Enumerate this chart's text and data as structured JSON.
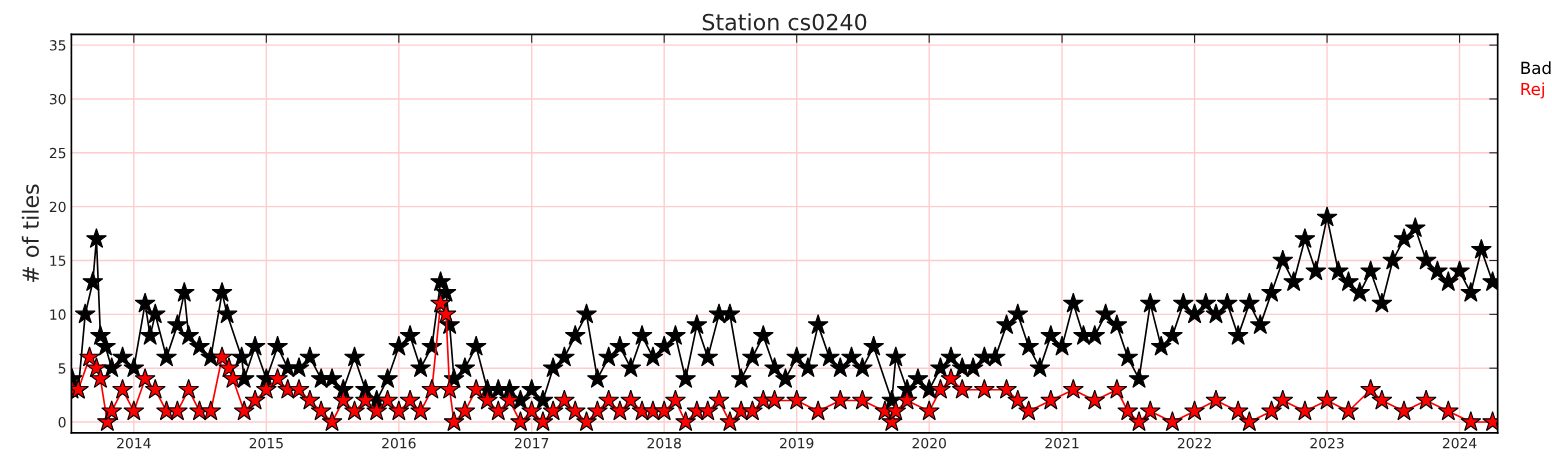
{
  "chart_data": {
    "type": "line",
    "title": "Station cs0240",
    "ylabel": "# of tiles",
    "xlim": [
      "2013-07-13",
      "2024-04-15"
    ],
    "xticks": [
      {
        "value": "2014-01-01",
        "label": "2014"
      },
      {
        "value": "2015-01-01",
        "label": "2015"
      },
      {
        "value": "2016-01-01",
        "label": "2016"
      },
      {
        "value": "2017-01-01",
        "label": "2017"
      },
      {
        "value": "2018-01-01",
        "label": "2018"
      },
      {
        "value": "2019-01-01",
        "label": "2019"
      },
      {
        "value": "2020-01-01",
        "label": "2020"
      },
      {
        "value": "2021-01-01",
        "label": "2021"
      },
      {
        "value": "2022-01-01",
        "label": "2022"
      },
      {
        "value": "2023-01-01",
        "label": "2023"
      },
      {
        "value": "2024-01-01",
        "label": "2024"
      }
    ],
    "ylim": [
      -1,
      36
    ],
    "yticks": [
      0,
      5,
      10,
      15,
      20,
      25,
      30,
      35
    ],
    "grid": true,
    "legend": "right",
    "marker": "star",
    "line_style": "solid",
    "series": [
      {
        "name": "Bad",
        "color": "#000000",
        "x": [
          "2013-07-15",
          "2013-08-01",
          "2013-08-20",
          "2013-09-01",
          "2013-09-10",
          "2013-09-20",
          "2013-10-01",
          "2013-10-15",
          "2013-11-01",
          "2013-12-01",
          "2014-01-01",
          "2014-02-01",
          "2014-02-15",
          "2014-03-01",
          "2014-04-01",
          "2014-05-01",
          "2014-05-20",
          "2014-06-01",
          "2014-07-01",
          "2014-08-01",
          "2014-09-01",
          "2014-09-15",
          "2014-10-15",
          "2014-10-25",
          "2014-11-01",
          "2014-12-01",
          "2015-01-01",
          "2015-02-01",
          "2015-03-01",
          "2015-04-01",
          "2015-05-01",
          "2015-06-01",
          "2015-07-01",
          "2015-08-01",
          "2015-09-01",
          "2015-10-01",
          "2015-11-01",
          "2015-12-01",
          "2016-01-01",
          "2016-02-01",
          "2016-03-01",
          "2016-04-01",
          "2016-04-25",
          "2016-05-10",
          "2016-05-20",
          "2016-06-01",
          "2016-07-01",
          "2016-08-01",
          "2016-09-01",
          "2016-10-01",
          "2016-11-01",
          "2016-12-01",
          "2017-01-01",
          "2017-02-01",
          "2017-03-01",
          "2017-04-01",
          "2017-05-01",
          "2017-06-01",
          "2017-07-01",
          "2017-08-01",
          "2017-09-01",
          "2017-10-01",
          "2017-11-01",
          "2017-12-01",
          "2018-01-01",
          "2018-02-01",
          "2018-03-01",
          "2018-04-01",
          "2018-05-01",
          "2018-06-01",
          "2018-07-01",
          "2018-08-01",
          "2018-09-01",
          "2018-10-01",
          "2018-11-01",
          "2018-12-01",
          "2019-01-01",
          "2019-02-01",
          "2019-03-01",
          "2019-04-01",
          "2019-05-01",
          "2019-06-01",
          "2019-07-01",
          "2019-08-01",
          "2019-09-01",
          "2019-09-20",
          "2019-10-01",
          "2019-11-01",
          "2019-12-01",
          "2020-01-01",
          "2020-02-01",
          "2020-03-01",
          "2020-04-01",
          "2020-05-01",
          "2020-06-01",
          "2020-07-01",
          "2020-08-01",
          "2020-09-01",
          "2020-10-01",
          "2020-11-01",
          "2020-12-01",
          "2021-01-01",
          "2021-02-01",
          "2021-03-01",
          "2021-04-01",
          "2021-05-01",
          "2021-06-01",
          "2021-07-01",
          "2021-08-01",
          "2021-09-01",
          "2021-10-01",
          "2021-11-01",
          "2021-12-01",
          "2022-01-01",
          "2022-02-01",
          "2022-03-01",
          "2022-04-01",
          "2022-05-01",
          "2022-06-01",
          "2022-07-01",
          "2022-08-01",
          "2022-09-01",
          "2022-10-01",
          "2022-11-01",
          "2022-12-01",
          "2023-01-01",
          "2023-02-01",
          "2023-03-01",
          "2023-04-01",
          "2023-05-01",
          "2023-06-01",
          "2023-07-01",
          "2023-08-01",
          "2023-09-01",
          "2023-10-01",
          "2023-11-01",
          "2023-12-01",
          "2024-01-01",
          "2024-02-01",
          "2024-03-01",
          "2024-04-01"
        ],
        "values": [
          4,
          3,
          10,
          null,
          13,
          17,
          8,
          7,
          5,
          6,
          5,
          11,
          8,
          10,
          6,
          9,
          12,
          8,
          7,
          6,
          12,
          10,
          null,
          6,
          4,
          7,
          4,
          7,
          5,
          5,
          6,
          4,
          4,
          3,
          6,
          3,
          2,
          4,
          7,
          8,
          5,
          7,
          13,
          12,
          9,
          4,
          5,
          7,
          3,
          3,
          3,
          2,
          3,
          2,
          5,
          6,
          8,
          10,
          4,
          6,
          7,
          5,
          8,
          6,
          7,
          8,
          4,
          9,
          6,
          10,
          10,
          4,
          6,
          8,
          5,
          4,
          6,
          5,
          9,
          6,
          5,
          6,
          5,
          7,
          null,
          2,
          6,
          3,
          4,
          3,
          5,
          6,
          5,
          5,
          6,
          6,
          9,
          10,
          7,
          5,
          8,
          7,
          11,
          8,
          8,
          10,
          9,
          6,
          4,
          11,
          7,
          8,
          11,
          10,
          11,
          10,
          11,
          8,
          11,
          9,
          12,
          15,
          13,
          17,
          14,
          19,
          14,
          13,
          12,
          14,
          11,
          15,
          17,
          18,
          15,
          14,
          13,
          14,
          12,
          16,
          13
        ]
      },
      {
        "name": "Rej",
        "color": "#ff0000",
        "x": [
          "2013-07-15",
          "2013-08-01",
          "2013-09-01",
          "2013-09-20",
          "2013-10-01",
          "2013-10-20",
          "2013-11-01",
          "2013-12-01",
          "2014-01-01",
          "2014-02-01",
          "2014-03-01",
          "2014-04-01",
          "2014-05-01",
          "2014-06-01",
          "2014-07-01",
          "2014-08-01",
          "2014-09-01",
          "2014-09-20",
          "2014-10-01",
          "2014-11-01",
          "2014-12-01",
          "2015-01-01",
          "2015-02-01",
          "2015-03-01",
          "2015-04-01",
          "2015-05-01",
          "2015-06-01",
          "2015-07-01",
          "2015-08-01",
          "2015-09-01",
          "2015-10-01",
          "2015-11-01",
          "2015-12-01",
          "2016-01-01",
          "2016-02-01",
          "2016-03-01",
          "2016-04-01",
          "2016-04-25",
          "2016-05-10",
          "2016-05-20",
          "2016-06-01",
          "2016-07-01",
          "2016-08-01",
          "2016-09-01",
          "2016-10-01",
          "2016-11-01",
          "2016-12-01",
          "2017-01-01",
          "2017-02-01",
          "2017-03-01",
          "2017-04-01",
          "2017-05-01",
          "2017-06-01",
          "2017-07-01",
          "2017-08-01",
          "2017-09-01",
          "2017-10-01",
          "2017-11-01",
          "2017-12-01",
          "2018-01-01",
          "2018-02-01",
          "2018-03-01",
          "2018-04-01",
          "2018-05-01",
          "2018-06-01",
          "2018-07-01",
          "2018-08-01",
          "2018-09-01",
          "2018-10-01",
          "2018-11-01",
          "2019-01-01",
          "2019-03-01",
          "2019-05-01",
          "2019-07-01",
          "2019-09-01",
          "2019-09-20",
          "2019-10-01",
          "2019-11-01",
          "2020-01-01",
          "2020-02-01",
          "2020-03-01",
          "2020-04-01",
          "2020-06-01",
          "2020-08-01",
          "2020-09-01",
          "2020-10-01",
          "2020-12-01",
          "2021-02-01",
          "2021-04-01",
          "2021-06-01",
          "2021-07-01",
          "2021-08-01",
          "2021-09-01",
          "2021-11-01",
          "2022-01-01",
          "2022-03-01",
          "2022-05-01",
          "2022-06-01",
          "2022-08-01",
          "2022-09-01",
          "2022-11-01",
          "2023-01-01",
          "2023-03-01",
          "2023-05-01",
          "2023-06-01",
          "2023-08-01",
          "2023-10-01",
          "2023-12-01",
          "2024-02-01",
          "2024-04-01"
        ],
        "values": [
          3,
          3,
          6,
          5,
          4,
          0,
          1,
          3,
          1,
          4,
          3,
          1,
          1,
          3,
          1,
          1,
          6,
          5,
          4,
          1,
          2,
          3,
          4,
          3,
          3,
          2,
          1,
          0,
          2,
          1,
          2,
          1,
          2,
          1,
          2,
          1,
          3,
          11,
          10,
          3,
          0,
          1,
          3,
          2,
          1,
          2,
          0,
          1,
          0,
          1,
          2,
          1,
          0,
          1,
          2,
          1,
          2,
          1,
          1,
          1,
          2,
          0,
          1,
          1,
          2,
          0,
          1,
          1,
          2,
          2,
          2,
          1,
          2,
          2,
          1,
          0,
          1,
          2,
          1,
          3,
          4,
          3,
          3,
          3,
          2,
          1,
          2,
          3,
          2,
          3,
          1,
          0,
          1,
          0,
          1,
          2,
          1,
          0,
          1,
          2,
          1,
          2,
          1,
          3,
          2,
          1,
          2,
          1,
          0,
          0
        ]
      }
    ]
  }
}
